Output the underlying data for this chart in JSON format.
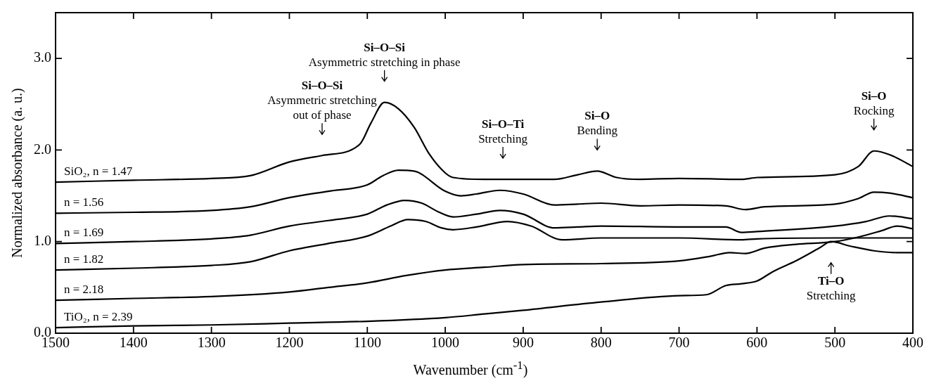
{
  "chart_data": {
    "type": "line",
    "xlabel": "Wavenumber (cm$^{-1}$)",
    "ylabel": "Normalized absorbance (a. u.)",
    "xlim": [
      1500,
      400
    ],
    "xticks": [
      1500,
      1400,
      1300,
      1200,
      1100,
      1000,
      900,
      800,
      700,
      600,
      500,
      400
    ],
    "ylim": [
      0,
      3.5
    ],
    "yticks": [
      {
        "value": 0,
        "label": "0.0"
      },
      {
        "value": 1,
        "label": "1.0"
      },
      {
        "value": 2,
        "label": "2.0"
      },
      {
        "value": 3,
        "label": "3.0"
      }
    ],
    "grid": false,
    "legend": false,
    "marker": "none",
    "line_style": "solid",
    "series": [
      {
        "name": "SiO₂, n = 1.47",
        "color": "#000000",
        "x": [
          1500,
          1400,
          1300,
          1250,
          1200,
          1158,
          1110,
          1095,
          1078,
          1060,
          1040,
          1020,
          1000,
          990,
          950,
          926,
          900,
          860,
          830,
          805,
          780,
          750,
          700,
          620,
          600,
          500,
          470,
          450,
          430,
          400
        ],
        "values": [
          1.65,
          1.67,
          1.69,
          1.72,
          1.87,
          1.94,
          2.06,
          2.3,
          2.52,
          2.45,
          2.25,
          1.95,
          1.75,
          1.7,
          1.68,
          1.68,
          1.68,
          1.68,
          1.73,
          1.77,
          1.7,
          1.68,
          1.69,
          1.68,
          1.7,
          1.73,
          1.82,
          1.99,
          1.95,
          1.82
        ]
      },
      {
        "name": "n = 1.56",
        "color": "#000000",
        "x": [
          1500,
          1400,
          1300,
          1250,
          1200,
          1150,
          1100,
          1080,
          1060,
          1040,
          1000,
          980,
          960,
          930,
          900,
          860,
          830,
          800,
          750,
          700,
          640,
          615,
          590,
          500,
          470,
          450,
          430,
          400
        ],
        "values": [
          1.31,
          1.32,
          1.34,
          1.38,
          1.48,
          1.55,
          1.62,
          1.72,
          1.78,
          1.77,
          1.55,
          1.5,
          1.52,
          1.56,
          1.52,
          1.4,
          1.41,
          1.42,
          1.39,
          1.4,
          1.39,
          1.35,
          1.38,
          1.41,
          1.47,
          1.54,
          1.53,
          1.48
        ]
      },
      {
        "name": "n = 1.69",
        "color": "#000000",
        "x": [
          1500,
          1400,
          1300,
          1250,
          1200,
          1150,
          1100,
          1075,
          1052,
          1030,
          1010,
          990,
          960,
          930,
          900,
          860,
          830,
          800,
          700,
          640,
          620,
          600,
          500,
          460,
          430,
          400
        ],
        "values": [
          0.98,
          1.0,
          1.03,
          1.07,
          1.17,
          1.23,
          1.3,
          1.4,
          1.45,
          1.42,
          1.33,
          1.27,
          1.3,
          1.34,
          1.3,
          1.15,
          1.16,
          1.17,
          1.16,
          1.16,
          1.1,
          1.11,
          1.17,
          1.22,
          1.28,
          1.25
        ]
      },
      {
        "name": "n = 1.82",
        "color": "#000000",
        "x": [
          1500,
          1400,
          1300,
          1250,
          1200,
          1150,
          1100,
          1070,
          1048,
          1025,
          1005,
          990,
          960,
          920,
          890,
          850,
          800,
          700,
          620,
          600,
          500,
          400
        ],
        "values": [
          0.69,
          0.71,
          0.74,
          0.78,
          0.9,
          0.98,
          1.06,
          1.17,
          1.24,
          1.22,
          1.15,
          1.13,
          1.16,
          1.22,
          1.17,
          1.02,
          1.04,
          1.04,
          1.02,
          1.03,
          1.04,
          1.04
        ]
      },
      {
        "name": "n = 2.18",
        "color": "#000000",
        "x": [
          1500,
          1400,
          1300,
          1200,
          1150,
          1100,
          1050,
          1000,
          950,
          900,
          800,
          700,
          660,
          635,
          615,
          590,
          550,
          500,
          470,
          440,
          420,
          400
        ],
        "values": [
          0.36,
          0.38,
          0.4,
          0.45,
          0.5,
          0.55,
          0.63,
          0.69,
          0.72,
          0.75,
          0.76,
          0.79,
          0.84,
          0.88,
          0.87,
          0.93,
          0.97,
          1.0,
          1.05,
          1.12,
          1.17,
          1.14
        ]
      },
      {
        "name": "TiO₂, n = 2.39",
        "color": "#000000",
        "x": [
          1500,
          1400,
          1300,
          1200,
          1100,
          1000,
          950,
          900,
          800,
          700,
          665,
          640,
          620,
          600,
          580,
          550,
          520,
          505,
          480,
          450,
          420,
          400
        ],
        "values": [
          0.06,
          0.08,
          0.09,
          0.11,
          0.13,
          0.17,
          0.21,
          0.25,
          0.34,
          0.41,
          0.42,
          0.52,
          0.54,
          0.57,
          0.67,
          0.79,
          0.93,
          1.0,
          0.95,
          0.9,
          0.88,
          0.88
        ]
      }
    ],
    "annotations": [
      {
        "text": "Si–O–Si\nAsymmetric stretching\nout of phase",
        "x": 1158,
        "y": 1.94
      },
      {
        "text": "Si–O–Si\nAsymmetric stretching in phase",
        "x": 1078,
        "y": 2.52
      },
      {
        "text": "Si–O–Ti\nStretching",
        "x": 926,
        "y": 1.68
      },
      {
        "text": "Si–O\nBending",
        "x": 805,
        "y": 1.77
      },
      {
        "text": "Si–O\nRocking",
        "x": 450,
        "y": 1.99
      },
      {
        "text": "Ti–O\nStretching",
        "x": 505,
        "y": 1.0
      }
    ]
  }
}
